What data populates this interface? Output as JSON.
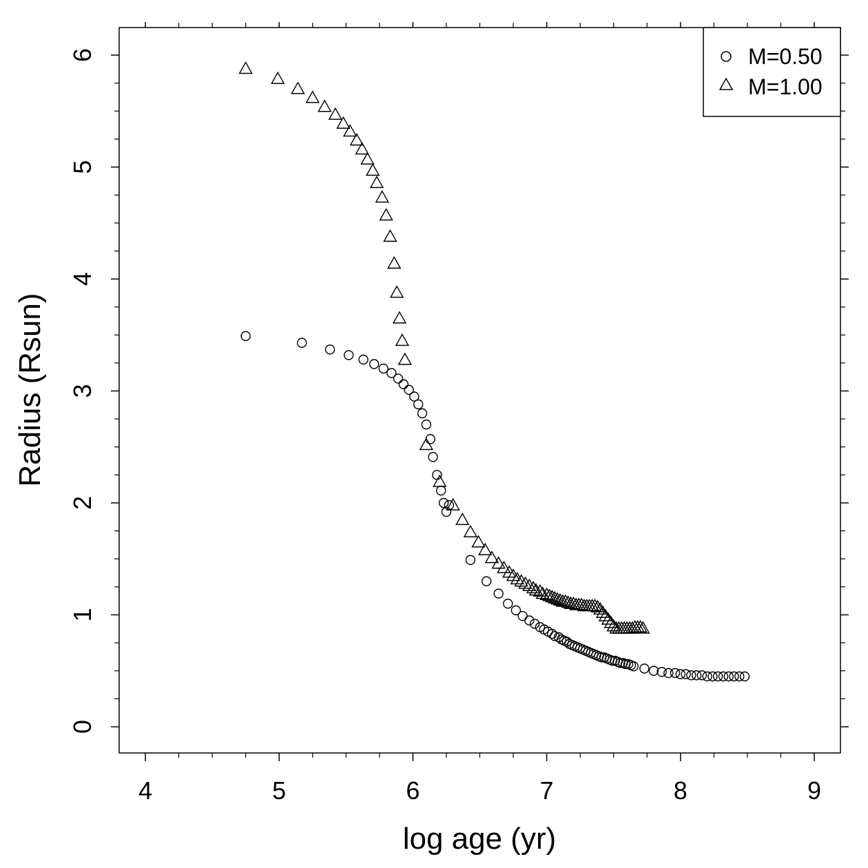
{
  "chart_data": {
    "type": "scatter",
    "xlabel": "log age (yr)",
    "ylabel": "Radius (Rsun)",
    "xlim": [
      3.8,
      9.2
    ],
    "ylim": [
      -0.25,
      6.25
    ],
    "xticks": [
      4,
      5,
      6,
      7,
      8,
      9
    ],
    "xticklabels": [
      "4",
      "5",
      "6",
      "7",
      "8",
      "9"
    ],
    "yticks": [
      0,
      1,
      2,
      3,
      4,
      5,
      6
    ],
    "yticklabels": [
      "0",
      "1",
      "2",
      "3",
      "4",
      "5",
      "6"
    ],
    "grid": false,
    "legend_position": "top-right",
    "series": [
      {
        "name": "M=0.50",
        "marker": "circle",
        "x": [
          4.75,
          5.17,
          5.38,
          5.52,
          5.63,
          5.71,
          5.78,
          5.84,
          5.89,
          5.93,
          5.97,
          6.01,
          6.04,
          6.07,
          6.1,
          6.13,
          6.15,
          6.18,
          6.21,
          6.23,
          6.25,
          6.27,
          6.43,
          6.55,
          6.64,
          6.71,
          6.77,
          6.82,
          6.87,
          6.91,
          6.95,
          6.98,
          7.01,
          7.04,
          7.06,
          7.09,
          7.11,
          7.13,
          7.15,
          7.17,
          7.19,
          7.21,
          7.23,
          7.25,
          7.27,
          7.29,
          7.31,
          7.33,
          7.35,
          7.37,
          7.39,
          7.41,
          7.43,
          7.45,
          7.47,
          7.49,
          7.51,
          7.53,
          7.55,
          7.57,
          7.59,
          7.61,
          7.63,
          7.65,
          7.73,
          7.8,
          7.86,
          7.91,
          7.96,
          8.0,
          8.04,
          8.08,
          8.12,
          8.16,
          8.2,
          8.24,
          8.28,
          8.32,
          8.36,
          8.4,
          8.44,
          8.48
        ],
        "y": [
          3.49,
          3.43,
          3.37,
          3.32,
          3.28,
          3.24,
          3.2,
          3.16,
          3.11,
          3.06,
          3.01,
          2.95,
          2.88,
          2.8,
          2.7,
          2.57,
          2.41,
          2.25,
          2.11,
          2.0,
          1.92,
          1.98,
          1.49,
          1.3,
          1.19,
          1.1,
          1.04,
          0.99,
          0.95,
          0.92,
          0.89,
          0.87,
          0.85,
          0.83,
          0.81,
          0.8,
          0.78,
          0.77,
          0.76,
          0.74,
          0.73,
          0.72,
          0.71,
          0.7,
          0.69,
          0.68,
          0.67,
          0.66,
          0.65,
          0.64,
          0.63,
          0.62,
          0.62,
          0.61,
          0.6,
          0.59,
          0.59,
          0.58,
          0.57,
          0.57,
          0.56,
          0.56,
          0.55,
          0.54,
          0.52,
          0.5,
          0.49,
          0.48,
          0.48,
          0.47,
          0.47,
          0.46,
          0.46,
          0.46,
          0.45,
          0.45,
          0.45,
          0.45,
          0.45,
          0.45,
          0.45,
          0.45
        ]
      },
      {
        "name": "M=1.00",
        "marker": "triangle",
        "x": [
          4.75,
          4.99,
          5.14,
          5.25,
          5.34,
          5.42,
          5.48,
          5.53,
          5.58,
          5.62,
          5.66,
          5.7,
          5.73,
          5.77,
          5.8,
          5.83,
          5.86,
          5.88,
          5.9,
          5.92,
          5.94,
          6.1,
          6.2,
          6.3,
          6.37,
          6.43,
          6.49,
          6.54,
          6.59,
          6.64,
          6.68,
          6.72,
          6.75,
          6.78,
          6.81,
          6.84,
          6.87,
          6.9,
          6.92,
          6.95,
          6.97,
          7.0,
          7.02,
          7.04,
          7.06,
          7.08,
          7.1,
          7.12,
          7.14,
          7.16,
          7.18,
          7.2,
          7.22,
          7.24,
          7.26,
          7.28,
          7.3,
          7.32,
          7.34,
          7.36,
          7.38,
          7.4,
          7.42,
          7.44,
          7.46,
          7.48,
          7.5,
          7.52,
          7.54,
          7.56,
          7.58,
          7.6,
          7.62,
          7.64,
          7.66,
          7.68,
          7.7,
          7.72
        ],
        "y": [
          5.88,
          5.79,
          5.7,
          5.62,
          5.54,
          5.47,
          5.39,
          5.32,
          5.24,
          5.16,
          5.07,
          4.97,
          4.86,
          4.73,
          4.57,
          4.38,
          4.14,
          3.88,
          3.65,
          3.45,
          3.28,
          2.52,
          2.19,
          1.98,
          1.85,
          1.74,
          1.65,
          1.58,
          1.51,
          1.46,
          1.42,
          1.38,
          1.35,
          1.32,
          1.3,
          1.28,
          1.26,
          1.24,
          1.22,
          1.21,
          1.19,
          1.18,
          1.17,
          1.16,
          1.15,
          1.14,
          1.13,
          1.12,
          1.12,
          1.11,
          1.1,
          1.1,
          1.09,
          1.09,
          1.09,
          1.08,
          1.08,
          1.08,
          1.08,
          1.08,
          1.07,
          1.05,
          1.02,
          0.99,
          0.96,
          0.93,
          0.9,
          0.88,
          0.88,
          0.88,
          0.88,
          0.88,
          0.88,
          0.88,
          0.89,
          0.89,
          0.89,
          0.88
        ]
      }
    ]
  }
}
